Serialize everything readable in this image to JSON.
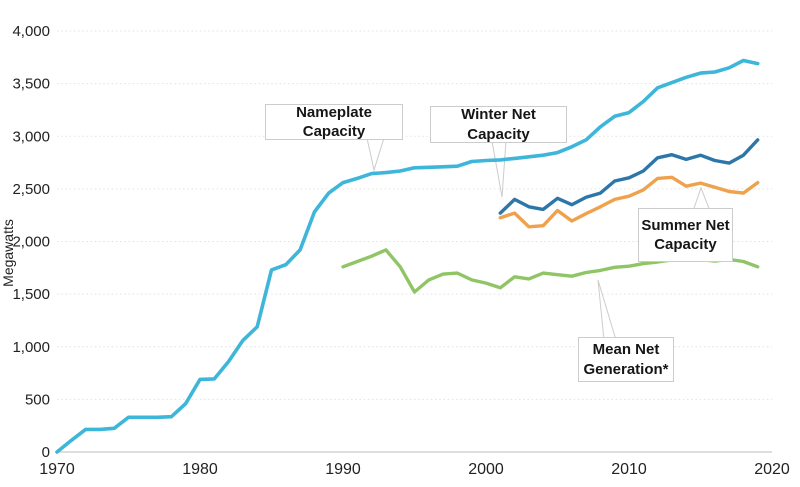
{
  "chart": {
    "y_axis_title": "Megawatts",
    "background_color": "#ffffff",
    "gridline_color": "#e3e3e3",
    "axis_line_color": "#c9c9c9",
    "tick_label_color": "#222222"
  },
  "chart_data": {
    "type": "line",
    "title": "",
    "xlabel": "",
    "ylabel": "Megawatts",
    "xlim": [
      1970,
      2020
    ],
    "ylim": [
      0,
      4000
    ],
    "grid": "horizontal dotted gridlines every 500 MW, solid baseline at 0",
    "legend_position": "inline callout boxes with pointer triangles",
    "x_ticks": [
      "1970",
      "1980",
      "1990",
      "2000",
      "2010",
      "2020"
    ],
    "y_ticks": [
      {
        "value": 0,
        "label": "0"
      },
      {
        "value": 500,
        "label": "500"
      },
      {
        "value": 1000,
        "label": "1,000"
      },
      {
        "value": 1500,
        "label": "1,500"
      },
      {
        "value": 2000,
        "label": "2,000"
      },
      {
        "value": 2500,
        "label": "2,500"
      },
      {
        "value": 3000,
        "label": "3,000"
      },
      {
        "value": 3500,
        "label": "3,500"
      },
      {
        "value": 4000,
        "label": "4,000"
      }
    ],
    "series": [
      {
        "name": "Nameplate Capacity",
        "color": "#3eb6da",
        "start_year": 1970,
        "values": [
          0,
          110,
          215,
          215,
          225,
          330,
          330,
          330,
          335,
          460,
          690,
          695,
          860,
          1060,
          1190,
          1730,
          1780,
          1920,
          2280,
          2460,
          2560,
          2600,
          2645,
          2655,
          2670,
          2700,
          2705,
          2710,
          2715,
          2760,
          2770,
          2775,
          2790,
          2805,
          2820,
          2845,
          2900,
          2965,
          3090,
          3190,
          3225,
          3330,
          3460,
          3510,
          3560,
          3600,
          3610,
          3650,
          3720,
          3690
        ]
      },
      {
        "name": "Winter Net Capacity",
        "color": "#2d76a9",
        "start_year": 2001,
        "values": [
          2270,
          2400,
          2330,
          2305,
          2410,
          2350,
          2420,
          2460,
          2575,
          2605,
          2670,
          2795,
          2825,
          2780,
          2820,
          2770,
          2745,
          2820,
          2965
        ]
      },
      {
        "name": "Summer Net Capacity",
        "color": "#efa14c",
        "start_year": 2001,
        "values": [
          2225,
          2270,
          2140,
          2150,
          2295,
          2195,
          2265,
          2330,
          2400,
          2430,
          2490,
          2600,
          2610,
          2525,
          2555,
          2515,
          2475,
          2460,
          2560
        ]
      },
      {
        "name": "Mean Net Generation*",
        "color": "#90c566",
        "start_year": 1990,
        "values": [
          1760,
          1810,
          1860,
          1920,
          1760,
          1520,
          1635,
          1690,
          1700,
          1635,
          1605,
          1560,
          1665,
          1645,
          1700,
          1685,
          1670,
          1705,
          1725,
          1755,
          1765,
          1790,
          1805,
          1825,
          1835,
          1828,
          1815,
          1830,
          1810,
          1760
        ]
      }
    ],
    "annotations": [
      {
        "label": "Nameplate Capacity",
        "points_to": {
          "year": 1992,
          "value": 2650
        }
      },
      {
        "label": "Winter Net Capacity",
        "points_to": {
          "year": 2001,
          "value": 2270
        }
      },
      {
        "label": "Summer Net\nCapacity",
        "points_to": {
          "year": 2015,
          "value": 2555
        }
      },
      {
        "label": "Mean Net\nGeneration*",
        "points_to": {
          "year": 2008,
          "value": 1725
        }
      }
    ]
  }
}
